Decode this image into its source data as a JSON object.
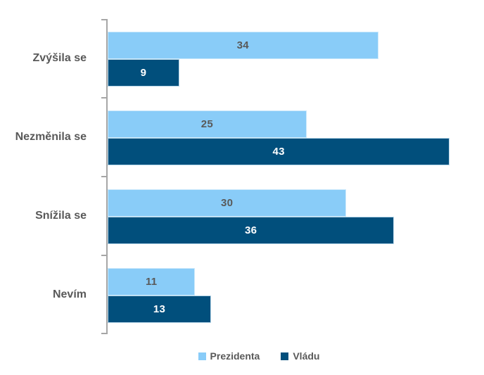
{
  "chart_data": {
    "type": "bar",
    "orientation": "horizontal",
    "title": "",
    "xlabel": "",
    "ylabel": "",
    "xlim": [
      0,
      45
    ],
    "grid": false,
    "legend_position": "bottom",
    "categories": [
      "Zvýšila se",
      "Nezměnila se",
      "Snížila se",
      "Nevím"
    ],
    "series": [
      {
        "name": "Prezidenta",
        "color": "#89CCF8",
        "values": [
          34,
          25,
          30,
          11
        ],
        "value_label_color": "#595959"
      },
      {
        "name": "Vládu",
        "color": "#014F7C",
        "values": [
          9,
          43,
          36,
          13
        ],
        "value_label_color": "#FFFFFF"
      }
    ],
    "axis_color": "#A6A6A6",
    "category_label_color": "#595959"
  },
  "legend": {
    "items": [
      {
        "label": "Prezidenta",
        "color": "#89CCF8"
      },
      {
        "label": "Vládu",
        "color": "#014F7C"
      }
    ]
  }
}
